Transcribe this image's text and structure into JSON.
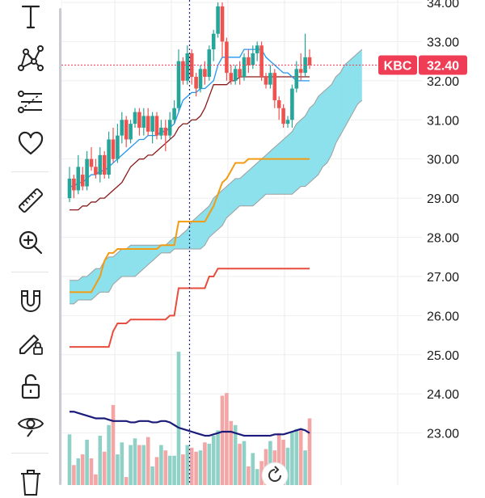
{
  "toolbar": {
    "tools": [
      {
        "name": "text-tool",
        "icon": "text-icon"
      },
      {
        "name": "pattern-tool",
        "icon": "xabcd-pattern-icon"
      },
      {
        "name": "fib-tool",
        "icon": "fib-retracement-icon"
      },
      {
        "name": "favorites-tool",
        "icon": "heart-icon"
      },
      {
        "name": "ruler-tool",
        "icon": "ruler-icon"
      },
      {
        "name": "zoom-tool",
        "icon": "zoom-in-icon"
      },
      {
        "name": "magnet-tool",
        "icon": "magnet-icon"
      },
      {
        "name": "lock-drawing-tool",
        "icon": "pencil-lock-icon"
      },
      {
        "name": "lock-all-tool",
        "icon": "unlock-icon"
      },
      {
        "name": "hide-tool",
        "icon": "eye-icon"
      },
      {
        "name": "remove-tool",
        "icon": "trash-icon"
      }
    ]
  },
  "colors": {
    "up": "#26a69a",
    "down": "#ef5350",
    "volume_up": "#8fd1c7",
    "volume_down": "#f4a6a6",
    "cloud_bull": "#80deea",
    "cloud_edge": "#9e9e9e",
    "conversion": "#2196f3",
    "keltner": "#8b1a1a",
    "orange_line": "#f39c12",
    "red_line": "#e74c3c",
    "volume_ma": "#1a1a7a",
    "price_tag": "#ef3d55",
    "crosshair": "#1a237e"
  },
  "reset_button": {
    "icon": "reset-icon"
  },
  "chart_data": {
    "type": "candlestick",
    "symbol": "KBC",
    "last_price": "32.40",
    "ylim": [
      22.6,
      34.0
    ],
    "y_ticks": [
      "34.00",
      "33.00",
      "32.00",
      "31.00",
      "30.00",
      "29.00",
      "28.00",
      "27.00",
      "26.00",
      "25.00",
      "24.00",
      "23.00"
    ],
    "grid": true,
    "candles": [
      [
        29.0,
        29.5,
        29.8,
        28.9
      ],
      [
        29.5,
        29.2,
        29.6,
        29.0
      ],
      [
        29.2,
        29.8,
        30.1,
        29.1
      ],
      [
        29.6,
        29.3,
        29.8,
        29.2
      ],
      [
        29.3,
        30.0,
        30.2,
        29.2
      ],
      [
        30.0,
        29.8,
        30.3,
        29.7
      ],
      [
        29.8,
        29.6,
        30.0,
        29.5
      ],
      [
        29.6,
        30.1,
        30.3,
        29.4
      ],
      [
        30.1,
        29.6,
        30.2,
        29.5
      ],
      [
        29.6,
        30.5,
        30.7,
        29.5
      ],
      [
        30.5,
        30.0,
        30.8,
        29.9
      ],
      [
        30.0,
        30.6,
        30.9,
        29.9
      ],
      [
        30.6,
        31.0,
        31.2,
        30.4
      ],
      [
        31.0,
        30.5,
        31.1,
        30.3
      ],
      [
        30.5,
        30.9,
        31.0,
        30.4
      ],
      [
        30.9,
        31.2,
        31.3,
        30.8
      ],
      [
        31.2,
        30.8,
        31.3,
        30.6
      ],
      [
        30.8,
        31.1,
        31.3,
        30.6
      ],
      [
        31.1,
        30.7,
        31.3,
        30.6
      ],
      [
        30.7,
        31.1,
        31.2,
        30.4
      ],
      [
        31.1,
        30.6,
        31.2,
        30.5
      ],
      [
        30.6,
        30.8,
        31.0,
        30.5
      ],
      [
        30.8,
        30.6,
        31.0,
        30.2
      ],
      [
        30.6,
        31.0,
        31.2,
        30.5
      ],
      [
        31.0,
        31.3,
        31.5,
        30.9
      ],
      [
        31.3,
        32.5,
        32.8,
        31.2
      ],
      [
        32.5,
        32.0,
        32.6,
        31.9
      ],
      [
        32.0,
        32.7,
        32.9,
        31.9
      ],
      [
        32.7,
        32.1,
        32.8,
        31.9
      ],
      [
        32.1,
        31.8,
        32.2,
        31.6
      ],
      [
        31.8,
        32.3,
        32.4,
        31.7
      ],
      [
        32.3,
        32.1,
        32.5,
        31.9
      ],
      [
        32.1,
        32.8,
        32.9,
        32.0
      ],
      [
        32.8,
        33.2,
        33.3,
        32.5
      ],
      [
        33.2,
        33.9,
        34.0,
        33.1
      ],
      [
        33.9,
        33.0,
        34.0,
        32.6
      ],
      [
        33.0,
        32.2,
        33.1,
        32.0
      ],
      [
        32.2,
        32.0,
        32.4,
        31.9
      ],
      [
        32.0,
        32.3,
        32.4,
        31.9
      ],
      [
        32.3,
        32.1,
        32.5,
        31.9
      ],
      [
        32.1,
        32.6,
        32.7,
        32.0
      ],
      [
        32.6,
        32.4,
        32.8,
        32.2
      ],
      [
        32.4,
        32.7,
        32.9,
        32.3
      ],
      [
        32.7,
        32.9,
        33.0,
        32.5
      ],
      [
        32.9,
        32.1,
        33.0,
        32.0
      ],
      [
        32.1,
        31.9,
        32.2,
        31.8
      ],
      [
        31.9,
        32.2,
        32.4,
        31.8
      ],
      [
        32.2,
        31.5,
        32.3,
        31.3
      ],
      [
        31.5,
        31.3,
        31.6,
        31.0
      ],
      [
        31.3,
        30.9,
        31.4,
        30.8
      ],
      [
        30.9,
        31.0,
        31.1,
        30.8
      ],
      [
        31.0,
        31.8,
        31.9,
        30.8
      ],
      [
        31.8,
        32.3,
        32.5,
        31.7
      ],
      [
        32.3,
        32.2,
        32.7,
        32.0
      ],
      [
        32.2,
        32.6,
        33.2,
        32.1
      ],
      [
        32.6,
        32.4,
        32.8,
        32.3
      ]
    ],
    "conversion_line": [
      29.3,
      29.3,
      29.4,
      29.4,
      29.5,
      29.6,
      29.6,
      29.7,
      29.7,
      29.8,
      29.9,
      30.0,
      30.1,
      30.2,
      30.3,
      30.4,
      30.5,
      30.5,
      30.6,
      30.6,
      30.6,
      30.7,
      30.7,
      30.8,
      30.9,
      31.2,
      31.5,
      31.6,
      31.7,
      31.7,
      31.8,
      31.8,
      31.9,
      32.0,
      32.4,
      32.6,
      32.6,
      32.6,
      32.6,
      32.6,
      32.8,
      32.8,
      32.8,
      32.8,
      32.8,
      32.6,
      32.5,
      32.4,
      32.3,
      32.2,
      32.2,
      32.1,
      32.0,
      32.0,
      32.0,
      32.0
    ],
    "keltner_line": [
      28.7,
      28.7,
      28.7,
      28.8,
      28.8,
      28.9,
      28.9,
      29.0,
      29.0,
      29.1,
      29.2,
      29.3,
      29.4,
      29.6,
      29.8,
      29.9,
      30.0,
      30.0,
      30.1,
      30.1,
      30.2,
      30.3,
      30.4,
      30.5,
      30.6,
      30.8,
      30.9,
      30.9,
      31.0,
      31.0,
      31.1,
      31.3,
      31.6,
      31.9,
      31.9,
      31.9,
      31.9,
      32.0,
      32.0,
      32.1,
      32.1,
      32.1,
      32.1,
      32.1,
      32.1,
      32.1,
      32.1,
      32.1,
      32.1,
      32.1,
      32.1,
      32.1,
      32.1,
      32.1,
      32.1,
      32.1
    ],
    "orange_line": [
      26.6,
      26.6,
      26.6,
      26.6,
      26.6,
      26.6,
      26.8,
      27.0,
      27.4,
      27.6,
      27.6,
      27.7,
      27.7,
      27.7,
      27.7,
      27.7,
      27.7,
      27.7,
      27.7,
      27.7,
      27.7,
      27.8,
      27.8,
      27.8,
      27.8,
      28.4,
      28.4,
      28.4,
      28.4,
      28.4,
      28.4,
      28.4,
      28.6,
      28.8,
      29.1,
      29.4,
      29.5,
      29.7,
      29.9,
      29.9,
      29.9,
      30.0,
      30.0,
      30.0,
      30.0,
      30.0,
      30.0,
      30.0,
      30.0,
      30.0,
      30.0,
      30.0,
      30.0,
      30.0,
      30.0,
      30.0
    ],
    "red_line": [
      25.2,
      25.2,
      25.2,
      25.2,
      25.2,
      25.2,
      25.2,
      25.2,
      25.2,
      25.2,
      25.6,
      25.8,
      25.8,
      25.8,
      25.9,
      25.9,
      25.9,
      25.9,
      25.9,
      25.9,
      25.9,
      25.9,
      25.9,
      26.0,
      26.0,
      26.7,
      26.7,
      26.7,
      26.7,
      26.7,
      26.7,
      26.7,
      27.0,
      27.0,
      27.2,
      27.2,
      27.2,
      27.2,
      27.2,
      27.2,
      27.2,
      27.2,
      27.2,
      27.2,
      27.2,
      27.2,
      27.2,
      27.2,
      27.2,
      27.2,
      27.2,
      27.2,
      27.2,
      27.2,
      27.2,
      27.2
    ],
    "cloud_upper": [
      26.9,
      26.9,
      26.9,
      27.0,
      27.0,
      27.1,
      27.2,
      27.2,
      27.4,
      27.5,
      27.5,
      27.6,
      27.7,
      27.7,
      27.8,
      27.8,
      27.8,
      27.8,
      27.8,
      27.8,
      27.8,
      27.8,
      27.8,
      27.9,
      28.0,
      28.0,
      28.1,
      28.2,
      28.4,
      28.5,
      28.6,
      28.7,
      28.8,
      29.0,
      29.1,
      29.2,
      29.3,
      29.4,
      29.5,
      29.5,
      29.6,
      29.7,
      29.8,
      29.9,
      30.0,
      30.1,
      30.2,
      30.3,
      30.4,
      30.5,
      30.6,
      30.7,
      30.9,
      31.0,
      31.1,
      31.3,
      31.4,
      31.6,
      31.7,
      31.8,
      31.9,
      32.1,
      32.2,
      32.4,
      32.5,
      32.6,
      32.7,
      32.8
    ],
    "cloud_lower": [
      26.3,
      26.3,
      26.4,
      26.4,
      26.4,
      26.4,
      26.5,
      26.6,
      26.6,
      26.6,
      26.8,
      26.9,
      27.0,
      27.0,
      27.0,
      27.0,
      27.1,
      27.2,
      27.3,
      27.4,
      27.5,
      27.6,
      27.6,
      27.6,
      27.7,
      27.7,
      27.7,
      27.7,
      27.7,
      27.7,
      27.7,
      27.8,
      28.0,
      28.1,
      28.2,
      28.3,
      28.5,
      28.6,
      28.7,
      28.8,
      28.8,
      28.8,
      28.8,
      28.9,
      29.0,
      29.1,
      29.1,
      29.1,
      29.1,
      29.1,
      29.1,
      29.1,
      29.2,
      29.3,
      29.3,
      29.4,
      29.5,
      29.6,
      29.8,
      29.9,
      30.1,
      30.4,
      30.6,
      30.8,
      31.0,
      31.2,
      31.4,
      31.5
    ],
    "volume": [
      0.38,
      0.15,
      0.2,
      0.23,
      0.34,
      0.2,
      0.08,
      0.37,
      0.25,
      0.45,
      0.6,
      0.23,
      0.32,
      0.06,
      0.3,
      0.35,
      0.3,
      0.3,
      0.36,
      0.14,
      0.21,
      0.3,
      0.26,
      0.22,
      0.22,
      1.0,
      0.23,
      0.3,
      0.28,
      0.25,
      0.26,
      0.32,
      0.31,
      0.37,
      0.41,
      0.67,
      0.69,
      0.48,
      0.45,
      0.31,
      0.33,
      0.14,
      0.24,
      0.12,
      0.18,
      0.27,
      0.33,
      0.26,
      0.39,
      0.34,
      0.28,
      0.4,
      0.42,
      0.42,
      0.26,
      0.5
    ],
    "volume_ma": [
      0.55,
      0.55,
      0.54,
      0.53,
      0.52,
      0.51,
      0.5,
      0.5,
      0.5,
      0.49,
      0.48,
      0.48,
      0.48,
      0.48,
      0.47,
      0.47,
      0.48,
      0.48,
      0.48,
      0.47,
      0.47,
      0.48,
      0.48,
      0.47,
      0.45,
      0.43,
      0.42,
      0.41,
      0.4,
      0.39,
      0.38,
      0.37,
      0.37,
      0.38,
      0.39,
      0.4,
      0.4,
      0.4,
      0.39,
      0.38,
      0.37,
      0.37,
      0.37,
      0.37,
      0.37,
      0.37,
      0.37,
      0.38,
      0.38,
      0.38,
      0.39,
      0.4,
      0.41,
      0.42,
      0.41,
      0.39
    ]
  }
}
